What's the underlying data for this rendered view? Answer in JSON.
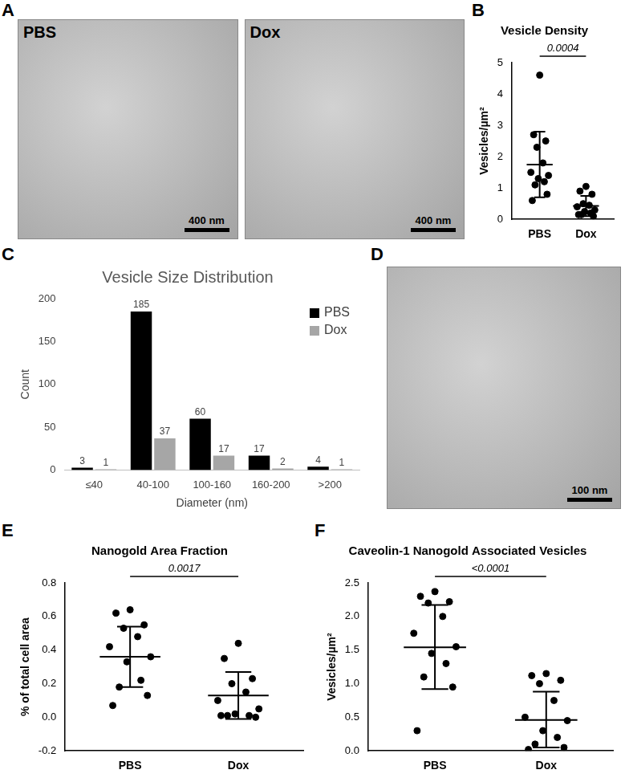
{
  "figure": {
    "images": [
      {
        "panel": "A",
        "items": [
          {
            "label": "PBS",
            "scale_bar": "400 nm"
          },
          {
            "label": "Dox",
            "scale_bar": "400 nm"
          }
        ]
      },
      {
        "panel": "D",
        "items": [
          {
            "scale_bar": "100 nm"
          }
        ]
      }
    ]
  },
  "chart_data": [
    {
      "panel": "B",
      "type": "dot",
      "title": "Vesicle Density",
      "y_label": "Vesicles/µm²",
      "categories": [
        "PBS",
        "Dox"
      ],
      "color": "#000000",
      "values": [
        [
          4.6,
          2.7,
          2.5,
          2.3,
          1.8,
          1.5,
          1.4,
          1.3,
          1.2,
          1.1,
          0.8,
          0.6
        ],
        [
          1.05,
          0.9,
          0.8,
          0.5,
          0.45,
          0.4,
          0.3,
          0.25,
          0.2,
          0.15,
          0.1,
          0.15
        ]
      ],
      "mean": [
        1.75,
        0.43
      ],
      "error_low": [
        0.7,
        0.1
      ],
      "error_high": [
        2.8,
        0.75
      ],
      "annotation": {
        "text": "0.0004",
        "between": [
          "PBS",
          "Dox"
        ]
      },
      "ylim": [
        0,
        5
      ],
      "yticks": [
        0,
        1,
        2,
        3,
        4,
        5
      ],
      "grid": false
    },
    {
      "panel": "C",
      "type": "bar",
      "title": "Vesicle Size Distribution",
      "x_label": "Diameter (nm)",
      "y_label": "Count",
      "categories": [
        "≤40",
        "40-100",
        "100-160",
        "160-200",
        ">200"
      ],
      "series": [
        {
          "name": "PBS",
          "color": "#000000",
          "values": [
            3,
            185,
            60,
            17,
            4
          ]
        },
        {
          "name": "Dox",
          "color": "#a6a6a6",
          "values": [
            1,
            37,
            17,
            2,
            1
          ]
        }
      ],
      "ylim": [
        0,
        200
      ],
      "yticks": [
        0,
        50,
        100,
        150,
        200
      ],
      "grid": false,
      "legend": "upper right",
      "data_labels": true
    },
    {
      "panel": "E",
      "type": "dot",
      "title": "Nanogold Area Fraction",
      "y_label": "% of total cell area",
      "categories": [
        "PBS",
        "Dox"
      ],
      "color": "#000000",
      "values": [
        [
          0.64,
          0.62,
          0.55,
          0.53,
          0.48,
          0.42,
          0.36,
          0.33,
          0.22,
          0.18,
          0.13,
          0.07
        ],
        [
          0.44,
          0.35,
          0.23,
          0.2,
          0.15,
          0.1,
          0.05,
          0.02,
          0.01,
          0.01,
          0.0,
          0.01
        ]
      ],
      "mean": [
        0.36,
        0.13
      ],
      "error_low": [
        0.18,
        -0.01
      ],
      "error_high": [
        0.54,
        0.27
      ],
      "annotation": {
        "text": "0.0017",
        "between": [
          "PBS",
          "Dox"
        ]
      },
      "ylim": [
        -0.2,
        0.8
      ],
      "yticks": [
        {
          "value": -0.2,
          "label": "-0.2"
        },
        {
          "value": 0,
          "label": "0.0"
        },
        {
          "value": 0.2,
          "label": "0.2"
        },
        {
          "value": 0.4,
          "label": "0.4"
        },
        {
          "value": 0.6,
          "label": "0.6"
        },
        {
          "value": 0.8,
          "label": "0.8"
        }
      ],
      "grid": false
    },
    {
      "panel": "F",
      "type": "dot",
      "title": "Caveolin-1 Nanogold Associated Vesicles",
      "y_label": "Vesicles/µm²",
      "categories": [
        "PBS",
        "Dox"
      ],
      "color": "#000000",
      "values": [
        [
          2.37,
          2.3,
          2.22,
          2.2,
          2.0,
          1.75,
          1.55,
          1.45,
          1.3,
          1.1,
          0.95,
          0.3
        ],
        [
          1.15,
          1.12,
          1.05,
          1.0,
          0.75,
          0.5,
          0.45,
          0.3,
          0.2,
          0.1,
          0.05,
          0.02
        ]
      ],
      "mean": [
        1.54,
        0.46
      ],
      "error_low": [
        0.92,
        0.05
      ],
      "error_high": [
        2.17,
        0.88
      ],
      "annotation": {
        "text": "<0.0001",
        "between": [
          "PBS",
          "Dox"
        ]
      },
      "ylim": [
        0,
        2.5
      ],
      "yticks": [
        {
          "value": 0,
          "label": "0.0"
        },
        {
          "value": 0.5,
          "label": "0.5"
        },
        {
          "value": 1,
          "label": "1.0"
        },
        {
          "value": 1.5,
          "label": "1.5"
        },
        {
          "value": 2,
          "label": "2.0"
        },
        {
          "value": 2.5,
          "label": "2.5"
        }
      ],
      "grid": false
    }
  ]
}
